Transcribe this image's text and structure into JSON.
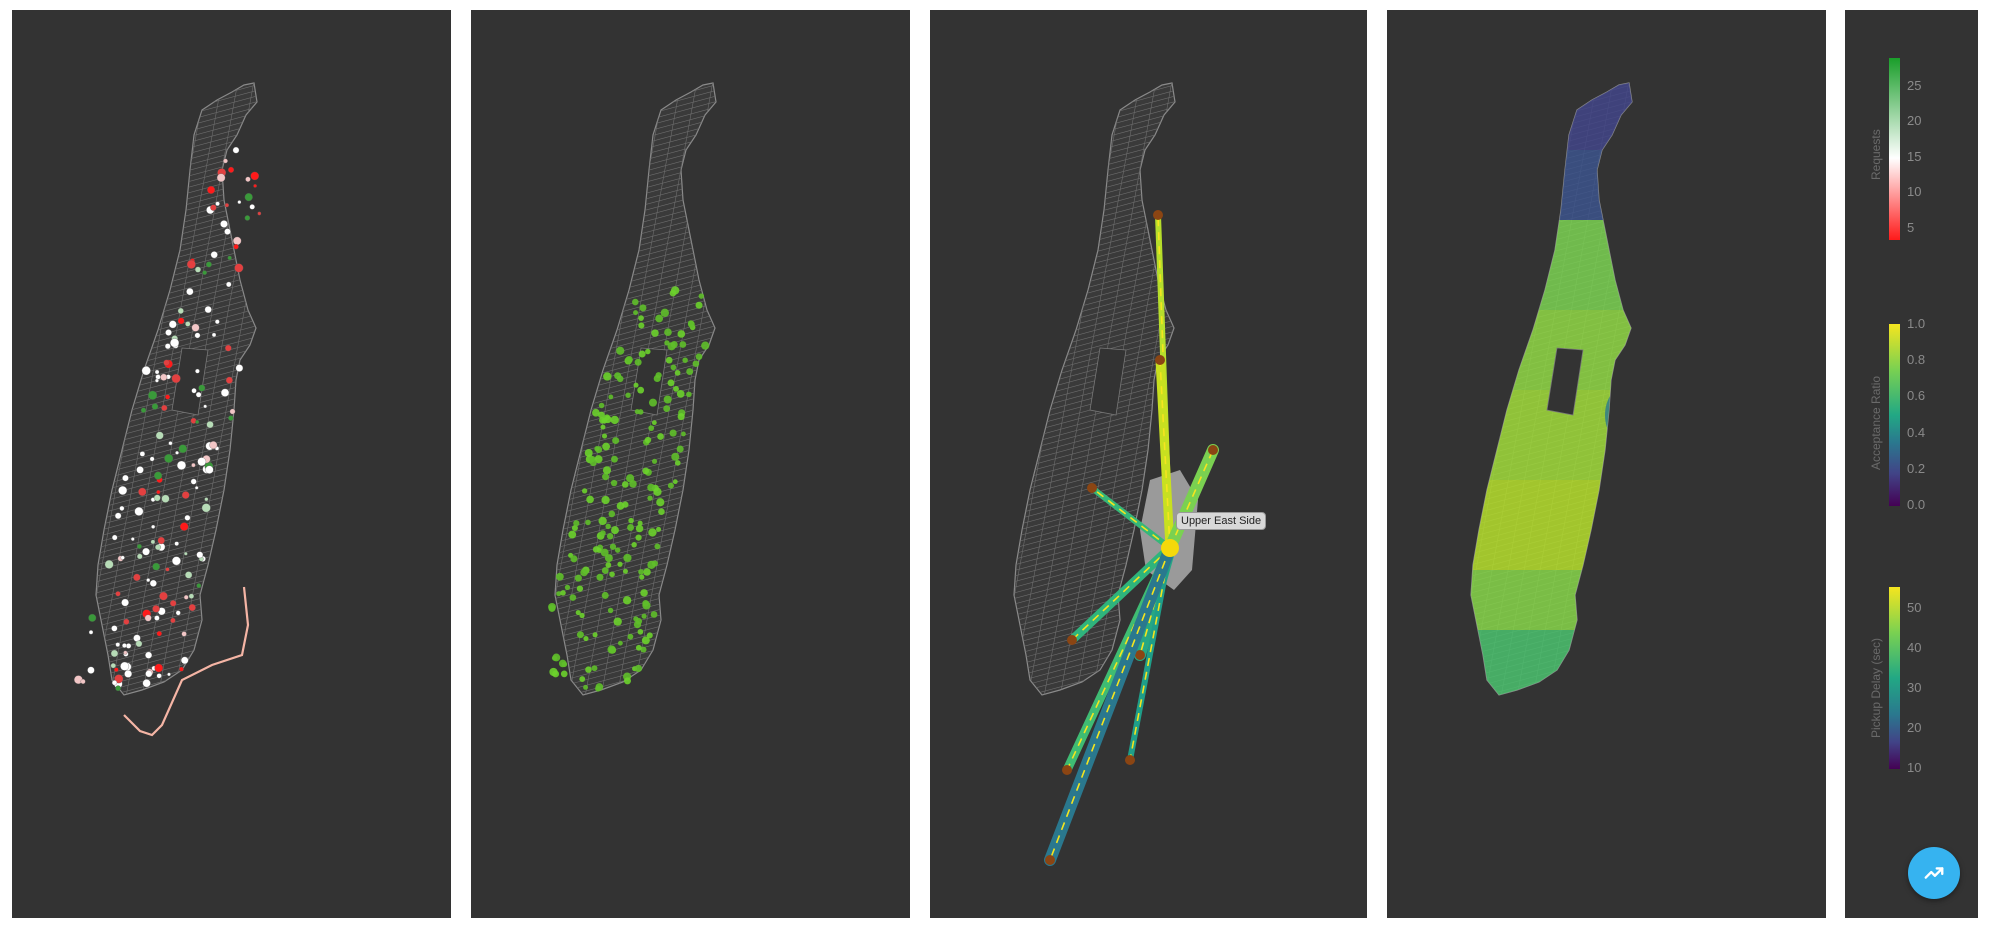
{
  "panels": [
    {
      "id": "requests-map"
    },
    {
      "id": "origins-map"
    },
    {
      "id": "flows-map",
      "tooltip": "Upper East Side"
    },
    {
      "id": "delay-choropleth"
    }
  ],
  "legends": {
    "requests": {
      "title": "Requests",
      "ticks": [
        "25",
        "20",
        "15",
        "10",
        "5"
      ],
      "colors": [
        "#1a9e2a",
        "#ffffff",
        "#ff1a1a"
      ]
    },
    "acceptance": {
      "title": "Acceptance Ratio",
      "ticks": [
        "1.0",
        "0.8",
        "0.6",
        "0.4",
        "0.2",
        "0.0"
      ],
      "colors": [
        "#f5e51f",
        "#7ad151",
        "#22a884",
        "#2a788e",
        "#414487",
        "#440154"
      ]
    },
    "delay": {
      "title": "Pickup Delay (sec)",
      "ticks": [
        "50",
        "40",
        "30",
        "20",
        "10"
      ],
      "colors": [
        "#f5e51f",
        "#7ad151",
        "#22a884",
        "#2a788e",
        "#414487",
        "#440154"
      ]
    }
  },
  "fab": {
    "icon": "trending-up-icon"
  }
}
